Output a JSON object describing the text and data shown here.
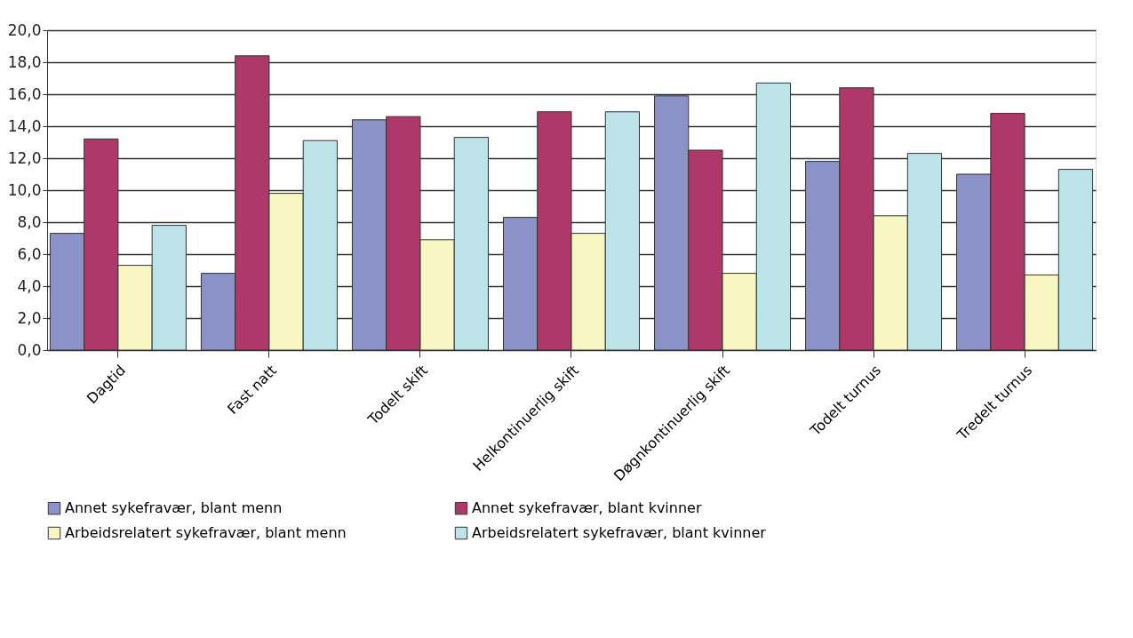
{
  "chart_data": {
    "type": "bar",
    "categories": [
      "Dagtid",
      "Fast natt",
      "Todelt skift",
      "Helkontinuerlig skift",
      "Døgnkontinuerlig skift",
      "Todelt turnus",
      "Tredelt turnus"
    ],
    "series": [
      {
        "name": "Annet sykefravær, blant menn",
        "color": "#8a92c8",
        "values": [
          7.3,
          4.8,
          14.4,
          8.3,
          15.9,
          11.8,
          11.0
        ]
      },
      {
        "name": "Annet sykefravær, blant kvinner",
        "color": "#ae386a",
        "values": [
          13.2,
          18.4,
          14.6,
          14.9,
          12.5,
          16.4,
          14.8
        ]
      },
      {
        "name": "Arbeidsrelatert sykefravær, blant menn",
        "color": "#f8f6c2",
        "values": [
          5.3,
          9.8,
          6.9,
          7.3,
          4.8,
          8.4,
          4.7
        ]
      },
      {
        "name": "Arbeidsrelatert sykefravær, blant kvinner",
        "color": "#bce3e8",
        "values": [
          7.8,
          13.1,
          13.3,
          14.9,
          16.7,
          12.3,
          11.3
        ]
      }
    ],
    "ylim": [
      0,
      20
    ],
    "yticks": [
      {
        "value": 0,
        "label": "0,0"
      },
      {
        "value": 2,
        "label": "2,0"
      },
      {
        "value": 4,
        "label": "4,0"
      },
      {
        "value": 6,
        "label": "6,0"
      },
      {
        "value": 8,
        "label": "8,0"
      },
      {
        "value": 10,
        "label": "10,0"
      },
      {
        "value": 12,
        "label": "12,0"
      },
      {
        "value": 14,
        "label": "14,0"
      },
      {
        "value": 16,
        "label": "16,0"
      },
      {
        "value": 18,
        "label": "18,0"
      },
      {
        "value": 20,
        "label": "20,0"
      }
    ],
    "grid": "y",
    "legend": "bottom"
  }
}
